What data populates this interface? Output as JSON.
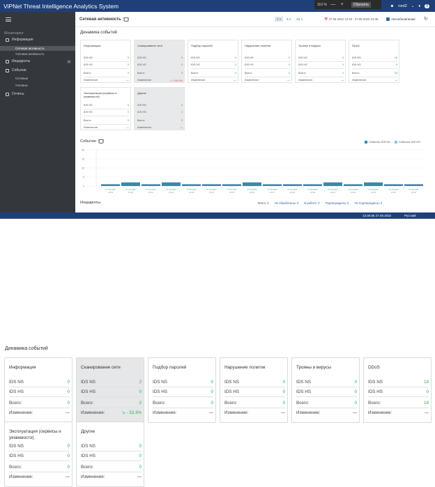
{
  "app": {
    "title": "ViPNet Threat Intelligence Analytics System",
    "zoom_popup": {
      "value": "110 %",
      "minus": "—",
      "plus": "+",
      "reset": "Сбросить"
    },
    "user": "root2",
    "notifications": "8"
  },
  "sidebar": {
    "section": "Мониторинг",
    "items": [
      {
        "label": "Информация"
      },
      {
        "label": "Инциденты",
        "badge": "0"
      },
      {
        "label": "События"
      },
      {
        "label": "Отчёты"
      }
    ],
    "sub_info": [
      "Сетевая активность",
      "Узловая активность"
    ],
    "sub_events": [
      "Сетевые",
      "Узловые"
    ]
  },
  "page": {
    "title": "Сетевая активность",
    "periods": [
      "1 ч",
      "6 ч",
      "24 ч"
    ],
    "date_range": "27.05.2022 13:19 - 27.05.2022 13:35",
    "autorefresh": "Автообновление",
    "dyn_title": "Динамика событий"
  },
  "labels": {
    "ids_ns": "IDS NS",
    "ids_hs": "IDS HS",
    "total": "Всего:",
    "change": "Изменение:"
  },
  "cards": [
    {
      "title": "Информация",
      "ns": "0",
      "hs": "0",
      "total": "0",
      "change": "—",
      "highlight": false
    },
    {
      "title": "Сканирование сети",
      "ns": "2",
      "hs": "0",
      "total": "2",
      "change": "-33.3%",
      "highlight": true
    },
    {
      "title": "Подбор паролей",
      "ns": "0",
      "hs": "0",
      "total": "0",
      "change": "—",
      "highlight": false
    },
    {
      "title": "Нарушение политик",
      "ns": "0",
      "hs": "0",
      "total": "0",
      "change": "—",
      "highlight": false
    },
    {
      "title": "Трояны и вирусы",
      "ns": "0",
      "hs": "0",
      "total": "0",
      "change": "—",
      "highlight": false
    },
    {
      "title": "DDoS",
      "ns": "18",
      "hs": "0",
      "total": "18",
      "change": "—",
      "highlight": false
    },
    {
      "title": "Эксплуатация (сервисы и уязвимости)",
      "ns": "0",
      "hs": "0",
      "total": "0",
      "change": "—",
      "highlight": false
    },
    {
      "title": "Другие",
      "ns": "0",
      "hs": "0",
      "total": "0",
      "change": "—",
      "highlight": false
    }
  ],
  "mini_cards": [
    {
      "title": "Информация",
      "ns": "0",
      "hs": "0",
      "total": "0",
      "change": "—"
    },
    {
      "title": "Сканирование сети",
      "ns": "3",
      "hs": "0",
      "total": "3",
      "change": "+ 50.0%"
    },
    {
      "title": "Подбор паролей",
      "ns": "0",
      "hs": "0",
      "total": "0",
      "change": "—"
    },
    {
      "title": "Нарушение политик",
      "ns": "0",
      "hs": "0",
      "total": "0",
      "change": "—"
    },
    {
      "title": "Трояны и вирусы",
      "ns": "0",
      "hs": "0",
      "total": "0",
      "change": "—"
    },
    {
      "title": "DDoS",
      "ns": "18",
      "hs": "0",
      "total": "18",
      "change": "—"
    },
    {
      "title": "Эксплуатация (сервисы и уязвимости)",
      "ns": "0",
      "hs": "0",
      "total": "0",
      "change": "—"
    },
    {
      "title": "Другие",
      "ns": "0",
      "hs": "0",
      "total": "0",
      "change": "—"
    }
  ],
  "events": {
    "title": "События",
    "legend": [
      "События IDS NS",
      "События IDS HS"
    ]
  },
  "incidents": {
    "title": "Инциденты",
    "total": "Всего: 0",
    "unprocessed": "Не обработаны: 0",
    "in_work": "В работе: 0",
    "confirmed": "Подтверждены: 0",
    "not_confirmed": "Не подтверждены: 0"
  },
  "statusbar": {
    "time": "13:35:56 27.05.2022",
    "lang": "Русский"
  },
  "colors": {
    "brand": "#1f3f78",
    "sidebar": "#34383d",
    "ns": "#3a8aa6",
    "hs": "#8fc4dd"
  },
  "chart_data": {
    "type": "bar",
    "title": "События",
    "categories": [
      "27.05.2022 13:19",
      "27.05.2022 13:20",
      "27.05.2022 13:21",
      "27.05.2022 13:22",
      "27.05.2022 13:23",
      "27.05.2022 13:24",
      "27.05.2022 13:25",
      "27.05.2022 13:26",
      "27.05.2022 13:27",
      "27.05.2022 13:28",
      "27.05.2022 13:29",
      "27.05.2022 13:30",
      "27.05.2022 13:31",
      "27.05.2022 13:32",
      "27.05.2022 13:33",
      "27.05.2022 13:34"
    ],
    "series": [
      {
        "name": "События IDS NS",
        "values": [
          1,
          2,
          1,
          2,
          1,
          1,
          1,
          2,
          1,
          1,
          1,
          2,
          1,
          2,
          1,
          1
        ]
      },
      {
        "name": "События IDS HS",
        "values": [
          0,
          0,
          0,
          0,
          0,
          0,
          0,
          0,
          0,
          0,
          0,
          0,
          0,
          0,
          0,
          0
        ]
      }
    ],
    "ylim": [
      0,
      20
    ],
    "yticks": [
      "0",
      "5",
      "10",
      "15",
      "20"
    ],
    "legend": "top-right",
    "grid": true
  }
}
